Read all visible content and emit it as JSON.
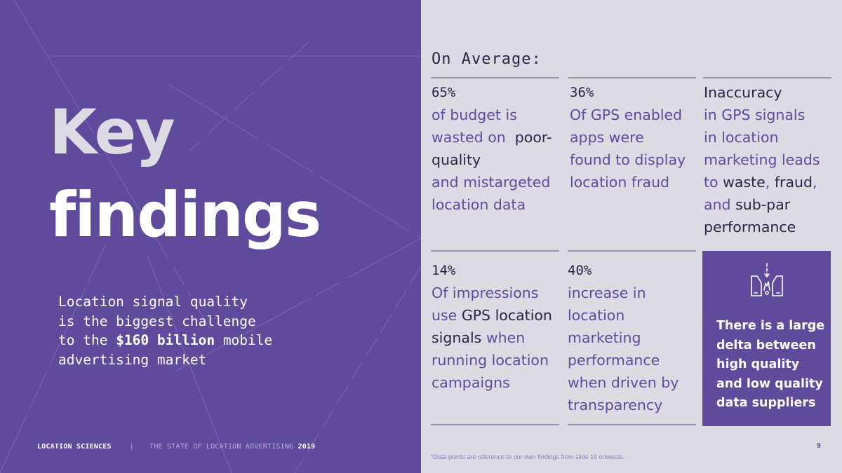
{
  "title": {
    "line1": "Key",
    "line2": "findings"
  },
  "subtitle": {
    "line1": "Location signal quality",
    "line2": "is the biggest challenge",
    "line3_pre": "to the ",
    "line3_bold": "$160 billion",
    "line3_post": " mobile",
    "line4": "advertising market"
  },
  "footer": {
    "brand": "LOCATION SCIENCES",
    "separator": "|",
    "doc_title": "THE STATE OF LOCATION ADVERTISING",
    "year": "2019",
    "page_number": "9",
    "footnote": "*Data points are reference to our own findings from slide 10 onwards."
  },
  "heading": "On Average:",
  "stats": {
    "s1": {
      "num": "65%",
      "l1": "of budget is",
      "l2a": "wasted on  ",
      "l2b": "poor-",
      "l3": "quality",
      "l4": "and mistargeted",
      "l5": "location data"
    },
    "s2": {
      "num": "36%",
      "l1": "Of GPS enabled",
      "l2": "apps were",
      "l3": "found to display",
      "l4": "location fraud"
    },
    "s3": {
      "l1": "Inaccuracy",
      "l2": "in GPS signals",
      "l3": "in location",
      "l4": "marketing leads",
      "l5a": "to ",
      "l5b": "waste",
      "l5c": ", ",
      "l5d": "fraud",
      "l5e": ",",
      "l6a": "and ",
      "l6b": "sub-par",
      "l7": "performance"
    },
    "s4": {
      "num": "14%",
      "l1": "Of impressions",
      "l2a": "use ",
      "l2b": "GPS location",
      "l3a": "signals",
      "l3b": " when",
      "l4": "running location",
      "l5": "campaigns"
    },
    "s5": {
      "num": "40%",
      "l1": "increase in",
      "l2": "location",
      "l3": "marketing",
      "l4": "performance",
      "l5": "when driven by",
      "l6": "transparency"
    }
  },
  "highlight": {
    "icon": "quality-gap-icon",
    "lines": [
      "There is a large",
      "delta between",
      "high quality",
      "and low quality",
      "data suppliers"
    ]
  },
  "colors": {
    "purple": "#604a9c",
    "light_bg": "#dcdae3",
    "dark_text": "#2b2348"
  }
}
